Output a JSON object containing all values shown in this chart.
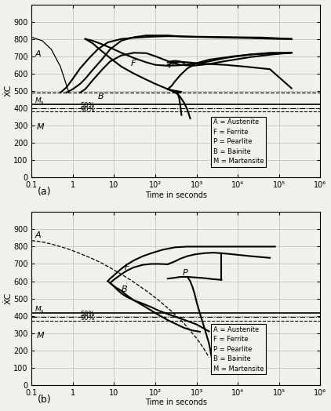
{
  "fig_width": 4.22,
  "fig_height": 5.24,
  "dpi": 100,
  "background_color": "#f2f0ec",
  "yticks": [
    0,
    100,
    200,
    300,
    400,
    500,
    600,
    700,
    800,
    900
  ],
  "xtick_labels": [
    "0.1",
    "1",
    "10",
    "10²",
    "10³",
    "10⁴",
    "10⁵",
    "10⁶"
  ],
  "xtick_vals": [
    0.1,
    1,
    10,
    100,
    1000,
    10000,
    100000,
    1000000
  ],
  "ylabel": "ẊC",
  "xlabel": "Time in seconds",
  "legend_text": [
    "A = Austenite",
    "F = Ferrite",
    "P = Pearlite",
    "B = Bainite",
    "M = Martensite"
  ],
  "label_a": "(a)",
  "label_b": "(b)"
}
